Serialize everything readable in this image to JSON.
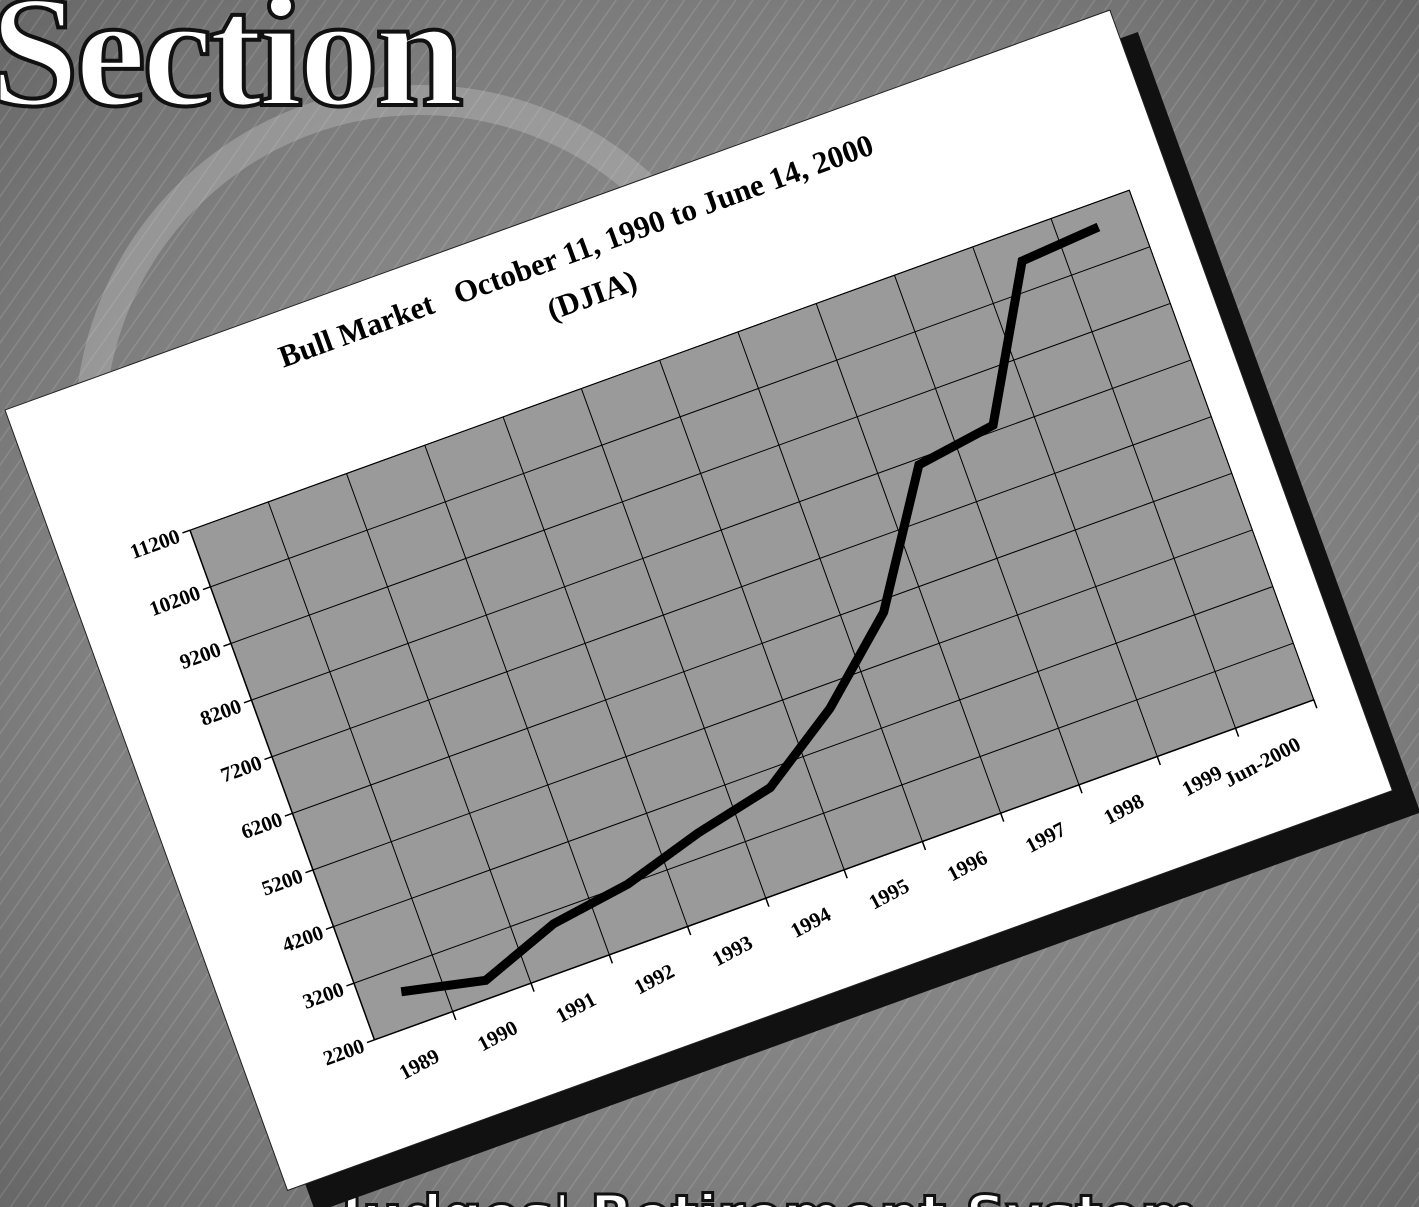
{
  "header": {
    "title": "Section"
  },
  "footer": {
    "title": "Judges' Retirement System"
  },
  "chart_data": {
    "type": "line",
    "title": "Bull Market   October 11, 1990 to June 14, 2000",
    "subtitle": "(DJIA)",
    "categories": [
      "1989",
      "1990",
      "1991",
      "1992",
      "1993",
      "1994",
      "1995",
      "1996",
      "1997",
      "1998",
      "1999",
      "Jun-2000"
    ],
    "values": [
      2800,
      2500,
      3000,
      3200,
      3600,
      3900,
      4800,
      6000,
      8100,
      8300,
      10700,
      10800
    ],
    "color": "#000000",
    "plot_color": "#9a9a9a",
    "ylim": [
      2200,
      11200
    ],
    "yticks": [
      2200,
      3200,
      4200,
      5200,
      6200,
      7200,
      8200,
      9200,
      10200,
      11200
    ],
    "grid": true
  }
}
